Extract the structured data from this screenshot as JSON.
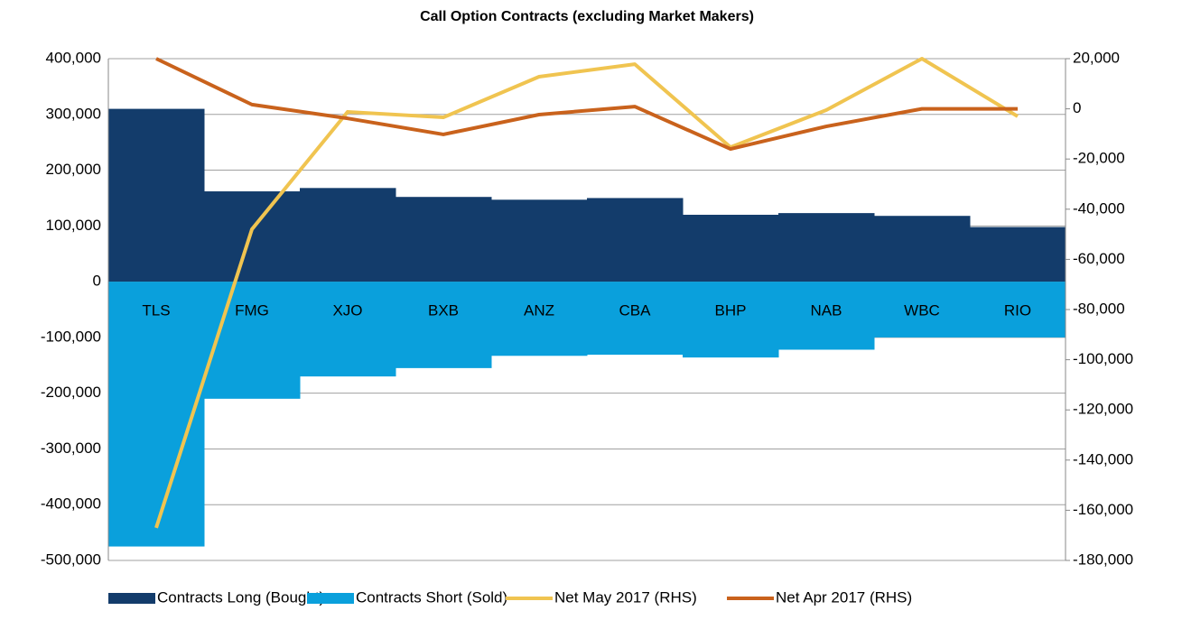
{
  "chart_data": {
    "type": "bar",
    "title": "Call Option Contracts (excluding Market Makers)",
    "categories": [
      "TLS",
      "FMG",
      "XJO",
      "BXB",
      "ANZ",
      "CBA",
      "BHP",
      "NAB",
      "WBC",
      "RIO"
    ],
    "series": [
      {
        "name": "Contracts Long (Bought)",
        "type": "bar",
        "color": "#133c6b",
        "values": [
          310000,
          162000,
          168000,
          152000,
          147000,
          150000,
          120000,
          123000,
          118000,
          98000
        ]
      },
      {
        "name": "Contracts Short (Sold)",
        "type": "bar",
        "color": "#0aa0dc",
        "values": [
          -475000,
          -210000,
          -170000,
          -155000,
          -133000,
          -131000,
          -136000,
          -122000,
          -100000,
          -100000
        ]
      },
      {
        "name": "Net May 2017 (RHS)",
        "type": "line",
        "axis": "y2",
        "color": "#f0c450",
        "values": [
          -167000,
          -48000,
          -1200,
          -3400,
          12800,
          17800,
          -15300,
          -500,
          20000,
          -3000
        ]
      },
      {
        "name": "Net Apr 2017 (RHS)",
        "type": "line",
        "axis": "y2",
        "color": "#c9621c",
        "values": [
          20000,
          1700,
          -3800,
          -10200,
          -2300,
          900,
          -16000,
          -7000,
          0,
          0
        ]
      }
    ],
    "ylim": [
      -500000,
      400000
    ],
    "yticks": [
      {
        "value": -500000,
        "label": "-500,000"
      },
      {
        "value": -400000,
        "label": "-400,000"
      },
      {
        "value": -300000,
        "label": "-300,000"
      },
      {
        "value": -200000,
        "label": "-200,000"
      },
      {
        "value": -100000,
        "label": "-100,000"
      },
      0,
      {
        "value": 100000,
        "label": "100,000"
      },
      {
        "value": 200000,
        "label": "200,000"
      },
      {
        "value": 300000,
        "label": "300,000"
      },
      {
        "value": 400000,
        "label": "400,000"
      }
    ],
    "y2lim": [
      -180000,
      20000
    ],
    "y2ticks": [
      {
        "value": -180000,
        "label": "-180,000"
      },
      {
        "value": -160000,
        "label": "-160,000"
      },
      {
        "value": -140000,
        "label": "-140,000"
      },
      {
        "value": -120000,
        "label": "-120,000"
      },
      {
        "value": -100000,
        "label": "-100,000"
      },
      {
        "value": -80000,
        "label": "-80,000"
      },
      {
        "value": -60000,
        "label": "-60,000"
      },
      {
        "value": -40000,
        "label": "-40,000"
      },
      {
        "value": -20000,
        "label": "-20,000"
      },
      0,
      {
        "value": 20000,
        "label": "20,000"
      }
    ],
    "grid": true,
    "legend": "bottom"
  }
}
